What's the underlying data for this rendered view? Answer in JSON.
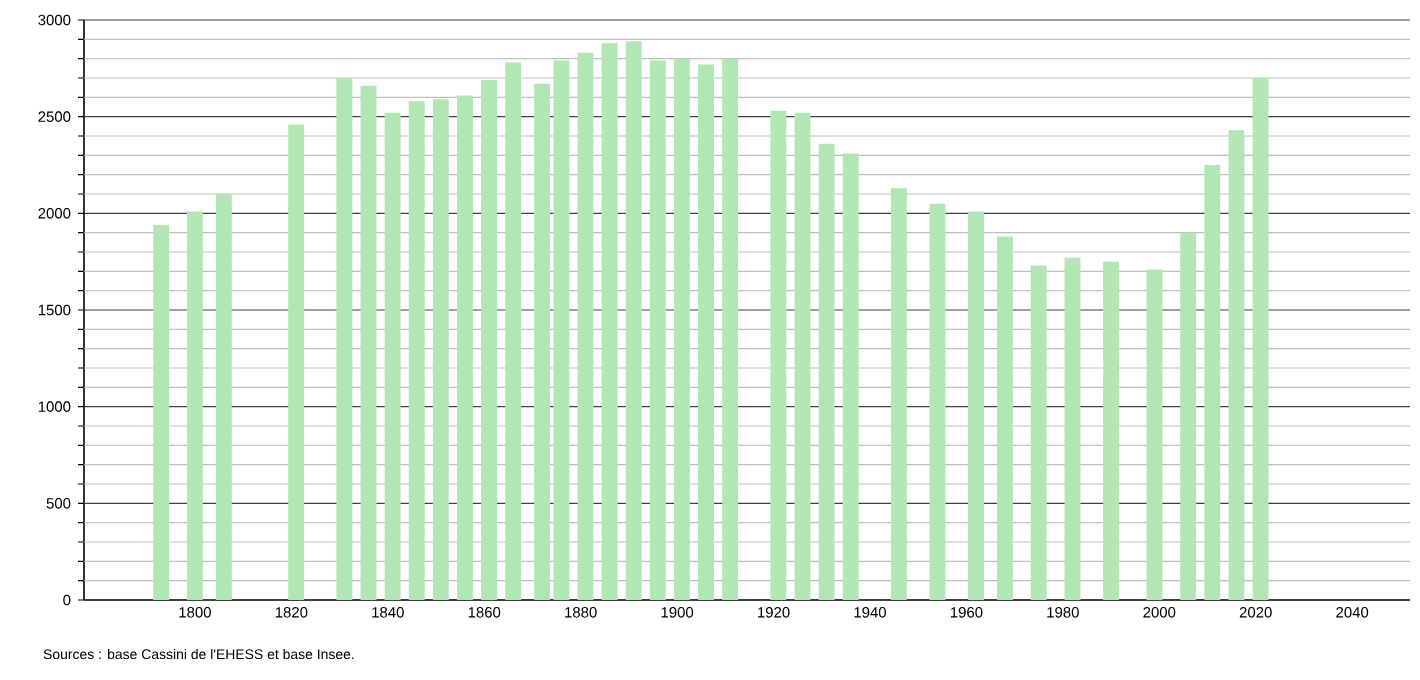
{
  "chart_data": {
    "type": "bar",
    "x": [
      1793,
      1800,
      1806,
      1821,
      1831,
      1836,
      1841,
      1846,
      1851,
      1856,
      1861,
      1866,
      1872,
      1876,
      1881,
      1886,
      1891,
      1896,
      1901,
      1906,
      1911,
      1921,
      1926,
      1931,
      1936,
      1946,
      1954,
      1962,
      1968,
      1975,
      1982,
      1990,
      1999,
      2006,
      2011,
      2016,
      2021
    ],
    "values": [
      1940,
      2010,
      2100,
      2460,
      2700,
      2660,
      2520,
      2580,
      2590,
      2610,
      2690,
      2780,
      2670,
      2790,
      2830,
      2880,
      2890,
      2790,
      2800,
      2770,
      2800,
      2530,
      2520,
      2360,
      2310,
      2130,
      2050,
      2010,
      1880,
      1730,
      1770,
      1750,
      1710,
      1900,
      2250,
      2430,
      2700
    ],
    "color": "#b3e6b5",
    "xlim": [
      1777,
      2052
    ],
    "xticks": [
      1800,
      1820,
      1840,
      1860,
      1880,
      1900,
      1920,
      1940,
      1960,
      1980,
      2000,
      2020,
      2040
    ],
    "ylim": [
      0,
      3000
    ],
    "yticks": [
      0,
      {
        "value": 100,
        "label": null
      },
      {
        "value": 200,
        "label": null
      },
      {
        "value": 300,
        "label": null
      },
      {
        "value": 400,
        "label": null
      },
      500,
      {
        "value": 600,
        "label": null
      },
      {
        "value": 700,
        "label": null
      },
      {
        "value": 800,
        "label": null
      },
      {
        "value": 900,
        "label": null
      },
      1000,
      {
        "value": 1100,
        "label": null
      },
      {
        "value": 1200,
        "label": null
      },
      {
        "value": 1300,
        "label": null
      },
      {
        "value": 1400,
        "label": null
      },
      1500,
      {
        "value": 1600,
        "label": null
      },
      {
        "value": 1700,
        "label": null
      },
      {
        "value": 1800,
        "label": null
      },
      {
        "value": 1900,
        "label": null
      },
      2000,
      {
        "value": 2100,
        "label": null
      },
      {
        "value": 2200,
        "label": null
      },
      {
        "value": 2300,
        "label": null
      },
      {
        "value": 2400,
        "label": null
      },
      2500,
      {
        "value": 2600,
        "label": null
      },
      {
        "value": 2700,
        "label": null
      },
      {
        "value": 2800,
        "label": null
      },
      {
        "value": 2900,
        "label": null
      },
      3000
    ],
    "grid": "y",
    "annotations": [
      "Sources : base Cassini de l'EHESS et base Insee."
    ]
  }
}
